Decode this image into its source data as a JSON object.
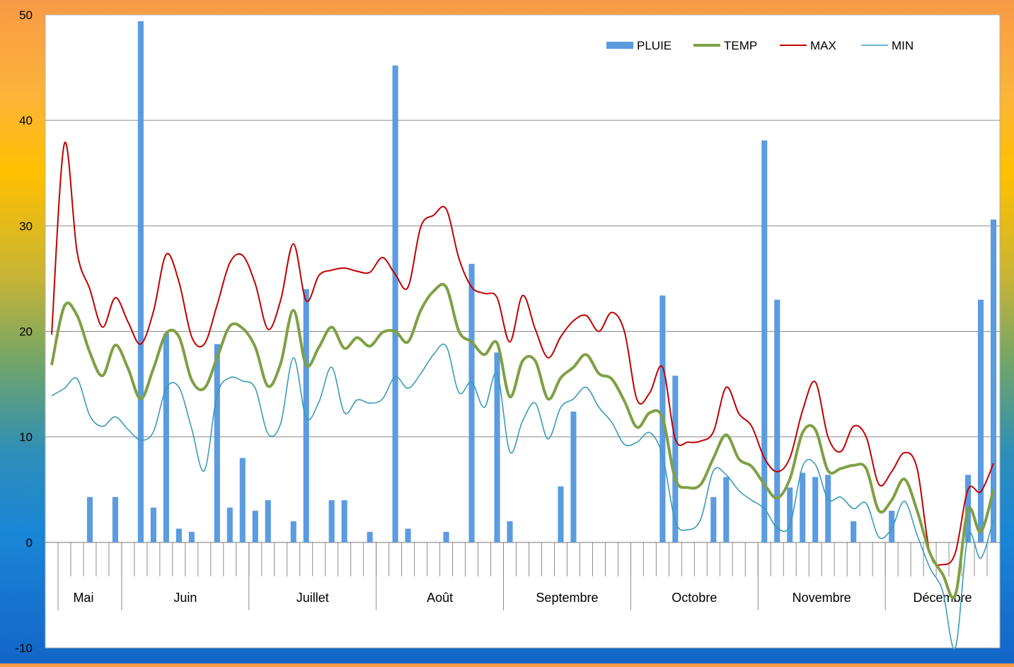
{
  "chart_data": {
    "type": "bar+line",
    "title": "",
    "xlabel": "",
    "ylabel": "",
    "ylim": [
      -10,
      50
    ],
    "yticks": [
      -10,
      0,
      10,
      20,
      30,
      40,
      50
    ],
    "grid": true,
    "legend_position": "top-right",
    "n_points": 75,
    "months": [
      {
        "label": "Mai",
        "start": 0,
        "end": 6
      },
      {
        "label": "Juin",
        "start": 6,
        "end": 16
      },
      {
        "label": "Juillet",
        "start": 16,
        "end": 26
      },
      {
        "label": "Août",
        "start": 26,
        "end": 36
      },
      {
        "label": "Septembre",
        "start": 36,
        "end": 46
      },
      {
        "label": "Octobre",
        "start": 46,
        "end": 56
      },
      {
        "label": "Novembre",
        "start": 56,
        "end": 66
      },
      {
        "label": "Décembre",
        "start": 66,
        "end": 75
      }
    ],
    "series": [
      {
        "name": "PLUIE",
        "kind": "bar",
        "color": "#5b9be0",
        "values": [
          0,
          0,
          0,
          4.3,
          0,
          4.3,
          0,
          49.4,
          3.3,
          19.8,
          1.3,
          1.0,
          0,
          18.8,
          3.3,
          8.0,
          3.0,
          4.0,
          0,
          2.0,
          24.0,
          0,
          4.0,
          4.0,
          0,
          1.0,
          0,
          45.2,
          1.3,
          0,
          0,
          1.0,
          0,
          26.4,
          0,
          18.0,
          2.0,
          0,
          0,
          0,
          5.3,
          12.4,
          0,
          0,
          0,
          0,
          0,
          0,
          23.4,
          15.8,
          0,
          0,
          4.3,
          6.2,
          0,
          0,
          38.1,
          23.0,
          5.2,
          6.6,
          6.2,
          6.4,
          0,
          2.0,
          0,
          0,
          3.0,
          0,
          0,
          0,
          0,
          0,
          6.4,
          23.0,
          30.6
        ]
      },
      {
        "name": "TEMP",
        "kind": "line",
        "color": "#7fa044",
        "values": [
          16.8,
          22.4,
          21.5,
          18.0,
          15.8,
          18.7,
          16.5,
          13.6,
          16.5,
          19.8,
          19.5,
          15.4,
          14.6,
          17.5,
          20.5,
          20.3,
          18.5,
          14.8,
          17.0,
          22.0,
          16.8,
          18.5,
          20.4,
          18.4,
          19.4,
          18.6,
          19.9,
          20.0,
          19.0,
          22.0,
          23.8,
          24.2,
          20.0,
          19.0,
          17.8,
          18.9,
          13.8,
          17.2,
          17.2,
          13.6,
          15.6,
          16.6,
          17.8,
          16.0,
          15.5,
          13.4,
          10.9,
          12.3,
          11.8,
          6.0,
          5.2,
          5.5,
          8.0,
          10.2,
          7.9,
          7.2,
          5.5,
          4.2,
          6.0,
          10.4,
          10.7,
          6.8,
          7.0,
          7.3,
          7.0,
          3.0,
          4.0,
          6.0,
          3.0,
          -1.0,
          -3.0,
          -5.0,
          3.1,
          1.0,
          5.0
        ]
      },
      {
        "name": "MAX",
        "kind": "line",
        "color": "#c00000",
        "values": [
          19.7,
          37.8,
          27.5,
          24.0,
          20.4,
          23.2,
          20.9,
          18.8,
          21.9,
          27.3,
          24.7,
          19.5,
          18.8,
          22.5,
          26.5,
          27.2,
          24.5,
          20.2,
          23.0,
          28.3,
          22.9,
          25.3,
          25.8,
          26.0,
          25.7,
          25.6,
          27.0,
          25.4,
          24.2,
          29.9,
          31.0,
          31.6,
          26.9,
          24.2,
          23.6,
          23.2,
          19.0,
          23.4,
          20.2,
          17.5,
          19.5,
          21.0,
          21.5,
          20.0,
          21.8,
          20.0,
          13.5,
          14.2,
          16.6,
          9.8,
          9.5,
          9.6,
          10.5,
          14.7,
          12.2,
          11.0,
          8.0,
          6.7,
          8.0,
          12.5,
          15.2,
          10.0,
          8.6,
          11.0,
          10.0,
          5.5,
          6.7,
          8.5,
          7.0,
          -1.0,
          -2.1,
          -1.0,
          5.0,
          4.8,
          7.5
        ]
      },
      {
        "name": "MIN",
        "kind": "line",
        "color": "#3a9bb6",
        "values": [
          13.9,
          14.6,
          15.5,
          12.0,
          11.0,
          11.9,
          10.7,
          9.7,
          10.5,
          14.6,
          14.7,
          10.8,
          6.8,
          14.0,
          15.6,
          15.3,
          14.6,
          10.3,
          11.3,
          17.5,
          11.8,
          13.3,
          16.6,
          12.3,
          13.5,
          13.2,
          13.6,
          15.7,
          14.6,
          16.0,
          17.8,
          18.6,
          14.2,
          15.2,
          12.8,
          16.0,
          8.6,
          11.5,
          13.2,
          9.8,
          12.8,
          13.6,
          14.7,
          12.8,
          11.4,
          9.3,
          9.5,
          10.4,
          8.2,
          2.0,
          1.2,
          2.2,
          6.8,
          6.4,
          4.9,
          4.0,
          3.2,
          1.4,
          1.6,
          7.2,
          7.4,
          4.1,
          4.3,
          3.2,
          3.7,
          0.5,
          1.3,
          3.9,
          0.7,
          -2.4,
          -4.6,
          -10.0,
          0.6,
          -1.5,
          2.2
        ]
      }
    ]
  }
}
